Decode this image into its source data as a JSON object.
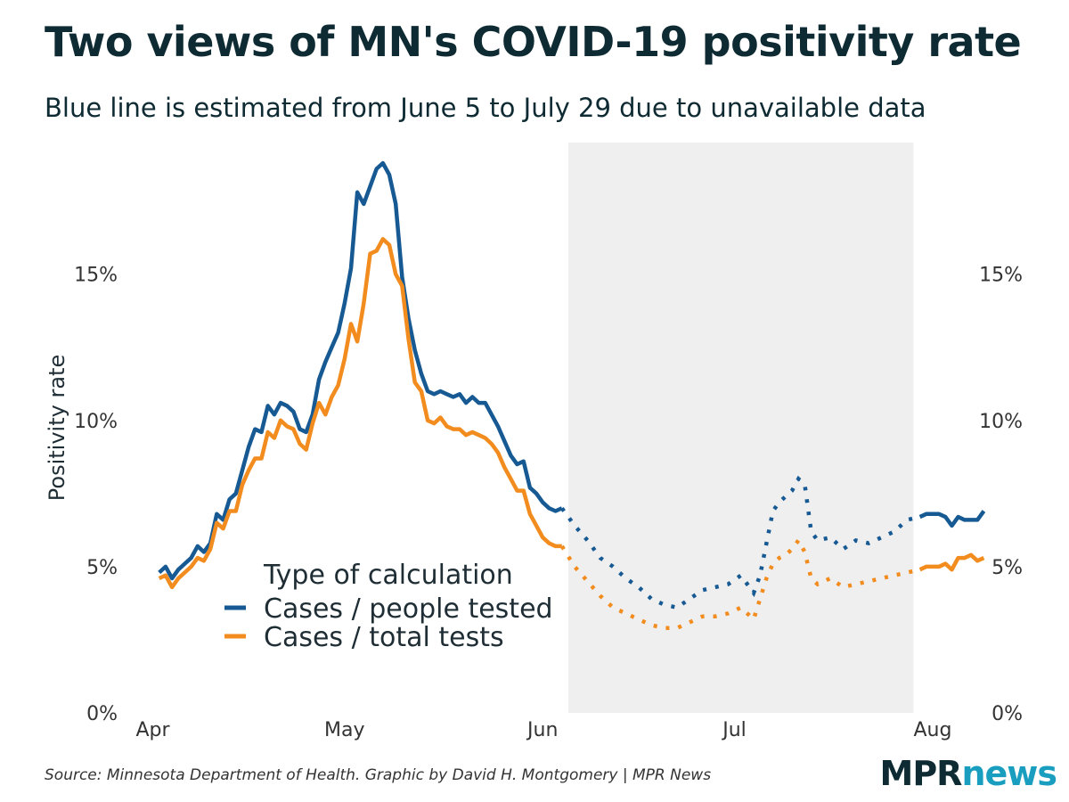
{
  "header": {
    "title": "Two views of MN's COVID-19 positivity rate",
    "subtitle": "Blue line is estimated from June 5 to July 29 due to unavailable data"
  },
  "footer": {
    "source": "Source: Minnesota Department of Health. Graphic by David H. Montgomery | MPR News",
    "logo_mpr": "MPR",
    "logo_news": "news"
  },
  "colors": {
    "people": "#175a93",
    "tests": "#f28c1e",
    "shade": "#efefef",
    "text": "#1f2d35"
  },
  "chart_data": {
    "type": "line",
    "title": "Two views of MN's COVID-19 positivity rate",
    "subtitle": "Blue line is estimated from June 5 to July 29 due to unavailable data",
    "ylabel": "Positivity rate",
    "xlabel": "",
    "ylim": [
      0,
      19.5
    ],
    "xlim": [
      "2020-03-29",
      "2020-08-07"
    ],
    "y_ticks": [
      0,
      5,
      10,
      15
    ],
    "y_tick_labels": [
      "0%",
      "5%",
      "10%",
      "15%"
    ],
    "y_axis_both_sides": true,
    "x_ticks": [
      "2020-04-01",
      "2020-05-01",
      "2020-06-01",
      "2020-07-01",
      "2020-08-01"
    ],
    "x_tick_labels": [
      "Apr",
      "May",
      "Jun",
      "Jul",
      "Aug"
    ],
    "shaded_range": [
      "2020-06-05",
      "2020-07-29"
    ],
    "grid": false,
    "legend": {
      "title": "Type of calculation",
      "placement": "bottom-left",
      "entries": [
        "Cases / people tested",
        "Cases / total tests"
      ]
    },
    "series": [
      {
        "name": "Cases / people tested",
        "color_key": "people",
        "solid": [
          [
            "2020-04-02",
            4.8
          ],
          [
            "2020-04-03",
            5.0
          ],
          [
            "2020-04-04",
            4.6
          ],
          [
            "2020-04-05",
            4.9
          ],
          [
            "2020-04-06",
            5.1
          ],
          [
            "2020-04-07",
            5.3
          ],
          [
            "2020-04-08",
            5.7
          ],
          [
            "2020-04-09",
            5.5
          ],
          [
            "2020-04-10",
            5.8
          ],
          [
            "2020-04-11",
            6.8
          ],
          [
            "2020-04-12",
            6.6
          ],
          [
            "2020-04-13",
            7.3
          ],
          [
            "2020-04-14",
            7.5
          ],
          [
            "2020-04-15",
            8.3
          ],
          [
            "2020-04-16",
            9.1
          ],
          [
            "2020-04-17",
            9.7
          ],
          [
            "2020-04-18",
            9.6
          ],
          [
            "2020-04-19",
            10.5
          ],
          [
            "2020-04-20",
            10.2
          ],
          [
            "2020-04-21",
            10.6
          ],
          [
            "2020-04-22",
            10.5
          ],
          [
            "2020-04-23",
            10.3
          ],
          [
            "2020-04-24",
            9.7
          ],
          [
            "2020-04-25",
            9.6
          ],
          [
            "2020-04-26",
            10.2
          ],
          [
            "2020-04-27",
            11.4
          ],
          [
            "2020-04-28",
            12.0
          ],
          [
            "2020-04-29",
            12.5
          ],
          [
            "2020-04-30",
            13.0
          ],
          [
            "2020-05-01",
            14.0
          ],
          [
            "2020-05-02",
            15.2
          ],
          [
            "2020-05-03",
            17.8
          ],
          [
            "2020-05-04",
            17.4
          ],
          [
            "2020-05-05",
            18.0
          ],
          [
            "2020-05-06",
            18.6
          ],
          [
            "2020-05-07",
            18.8
          ],
          [
            "2020-05-08",
            18.4
          ],
          [
            "2020-05-09",
            17.4
          ],
          [
            "2020-05-10",
            14.9
          ],
          [
            "2020-05-11",
            13.5
          ],
          [
            "2020-05-12",
            12.4
          ],
          [
            "2020-05-13",
            11.6
          ],
          [
            "2020-05-14",
            11.0
          ],
          [
            "2020-05-15",
            10.9
          ],
          [
            "2020-05-16",
            11.0
          ],
          [
            "2020-05-17",
            10.9
          ],
          [
            "2020-05-18",
            10.8
          ],
          [
            "2020-05-19",
            10.9
          ],
          [
            "2020-05-20",
            10.6
          ],
          [
            "2020-05-21",
            10.8
          ],
          [
            "2020-05-22",
            10.6
          ],
          [
            "2020-05-23",
            10.6
          ],
          [
            "2020-05-24",
            10.2
          ],
          [
            "2020-05-25",
            9.8
          ],
          [
            "2020-05-26",
            9.3
          ],
          [
            "2020-05-27",
            8.8
          ],
          [
            "2020-05-28",
            8.5
          ],
          [
            "2020-05-29",
            8.6
          ],
          [
            "2020-05-30",
            7.7
          ],
          [
            "2020-05-31",
            7.5
          ],
          [
            "2020-06-01",
            7.2
          ],
          [
            "2020-06-02",
            7.0
          ],
          [
            "2020-06-03",
            6.9
          ],
          [
            "2020-06-04",
            7.0
          ]
        ],
        "estimated": [
          [
            "2020-06-04",
            7.0
          ],
          [
            "2020-06-06",
            6.4
          ],
          [
            "2020-06-08",
            5.9
          ],
          [
            "2020-06-10",
            5.3
          ],
          [
            "2020-06-12",
            5.0
          ],
          [
            "2020-06-14",
            4.6
          ],
          [
            "2020-06-16",
            4.3
          ],
          [
            "2020-06-18",
            3.9
          ],
          [
            "2020-06-20",
            3.7
          ],
          [
            "2020-06-22",
            3.6
          ],
          [
            "2020-06-24",
            3.9
          ],
          [
            "2020-06-26",
            4.2
          ],
          [
            "2020-06-28",
            4.3
          ],
          [
            "2020-06-30",
            4.4
          ],
          [
            "2020-07-02",
            4.7
          ],
          [
            "2020-07-04",
            4.1
          ],
          [
            "2020-07-05",
            4.7
          ],
          [
            "2020-07-06",
            5.8
          ],
          [
            "2020-07-07",
            6.9
          ],
          [
            "2020-07-08",
            7.2
          ],
          [
            "2020-07-09",
            7.4
          ],
          [
            "2020-07-10",
            7.6
          ],
          [
            "2020-07-11",
            8.0
          ],
          [
            "2020-07-12",
            7.8
          ],
          [
            "2020-07-13",
            6.2
          ],
          [
            "2020-07-14",
            5.9
          ],
          [
            "2020-07-16",
            6.0
          ],
          [
            "2020-07-18",
            5.6
          ],
          [
            "2020-07-20",
            5.9
          ],
          [
            "2020-07-22",
            5.8
          ],
          [
            "2020-07-24",
            6.0
          ],
          [
            "2020-07-26",
            6.2
          ],
          [
            "2020-07-28",
            6.6
          ],
          [
            "2020-07-30",
            6.7
          ]
        ],
        "after": [
          [
            "2020-07-30",
            6.7
          ],
          [
            "2020-07-31",
            6.8
          ],
          [
            "2020-08-01",
            6.8
          ],
          [
            "2020-08-02",
            6.8
          ],
          [
            "2020-08-03",
            6.7
          ],
          [
            "2020-08-04",
            6.4
          ],
          [
            "2020-08-05",
            6.7
          ],
          [
            "2020-08-06",
            6.6
          ],
          [
            "2020-08-07",
            6.6
          ],
          [
            "2020-08-08",
            6.6
          ],
          [
            "2020-08-09",
            6.9
          ]
        ]
      },
      {
        "name": "Cases / total tests",
        "color_key": "tests",
        "solid": [
          [
            "2020-04-02",
            4.6
          ],
          [
            "2020-04-03",
            4.7
          ],
          [
            "2020-04-04",
            4.3
          ],
          [
            "2020-04-05",
            4.6
          ],
          [
            "2020-04-06",
            4.8
          ],
          [
            "2020-04-07",
            5.0
          ],
          [
            "2020-04-08",
            5.3
          ],
          [
            "2020-04-09",
            5.2
          ],
          [
            "2020-04-10",
            5.6
          ],
          [
            "2020-04-11",
            6.5
          ],
          [
            "2020-04-12",
            6.3
          ],
          [
            "2020-04-13",
            6.9
          ],
          [
            "2020-04-14",
            6.9
          ],
          [
            "2020-04-15",
            7.8
          ],
          [
            "2020-04-16",
            8.3
          ],
          [
            "2020-04-17",
            8.7
          ],
          [
            "2020-04-18",
            8.7
          ],
          [
            "2020-04-19",
            9.6
          ],
          [
            "2020-04-20",
            9.4
          ],
          [
            "2020-04-21",
            10.0
          ],
          [
            "2020-04-22",
            9.8
          ],
          [
            "2020-04-23",
            9.7
          ],
          [
            "2020-04-24",
            9.2
          ],
          [
            "2020-04-25",
            9.0
          ],
          [
            "2020-04-26",
            9.9
          ],
          [
            "2020-04-27",
            10.6
          ],
          [
            "2020-04-28",
            10.2
          ],
          [
            "2020-04-29",
            10.8
          ],
          [
            "2020-04-30",
            11.2
          ],
          [
            "2020-05-01",
            12.1
          ],
          [
            "2020-05-02",
            13.3
          ],
          [
            "2020-05-03",
            12.7
          ],
          [
            "2020-05-04",
            14.0
          ],
          [
            "2020-05-05",
            15.7
          ],
          [
            "2020-05-06",
            15.8
          ],
          [
            "2020-05-07",
            16.2
          ],
          [
            "2020-05-08",
            16.0
          ],
          [
            "2020-05-09",
            15.0
          ],
          [
            "2020-05-10",
            14.6
          ],
          [
            "2020-05-11",
            12.8
          ],
          [
            "2020-05-12",
            11.3
          ],
          [
            "2020-05-13",
            11.0
          ],
          [
            "2020-05-14",
            10.0
          ],
          [
            "2020-05-15",
            9.9
          ],
          [
            "2020-05-16",
            10.1
          ],
          [
            "2020-05-17",
            9.8
          ],
          [
            "2020-05-18",
            9.7
          ],
          [
            "2020-05-19",
            9.7
          ],
          [
            "2020-05-20",
            9.5
          ],
          [
            "2020-05-21",
            9.6
          ],
          [
            "2020-05-22",
            9.5
          ],
          [
            "2020-05-23",
            9.4
          ],
          [
            "2020-05-24",
            9.2
          ],
          [
            "2020-05-25",
            8.9
          ],
          [
            "2020-05-26",
            8.4
          ],
          [
            "2020-05-27",
            8.0
          ],
          [
            "2020-05-28",
            7.6
          ],
          [
            "2020-05-29",
            7.6
          ],
          [
            "2020-05-30",
            6.8
          ],
          [
            "2020-05-31",
            6.4
          ],
          [
            "2020-06-01",
            6.0
          ],
          [
            "2020-06-02",
            5.8
          ],
          [
            "2020-06-03",
            5.7
          ],
          [
            "2020-06-04",
            5.7
          ]
        ],
        "estimated": [
          [
            "2020-06-04",
            5.7
          ],
          [
            "2020-06-06",
            5.0
          ],
          [
            "2020-06-08",
            4.5
          ],
          [
            "2020-06-10",
            4.0
          ],
          [
            "2020-06-12",
            3.6
          ],
          [
            "2020-06-14",
            3.4
          ],
          [
            "2020-06-16",
            3.2
          ],
          [
            "2020-06-18",
            3.0
          ],
          [
            "2020-06-20",
            2.9
          ],
          [
            "2020-06-22",
            2.9
          ],
          [
            "2020-06-24",
            3.1
          ],
          [
            "2020-06-26",
            3.3
          ],
          [
            "2020-06-28",
            3.3
          ],
          [
            "2020-06-30",
            3.4
          ],
          [
            "2020-07-02",
            3.6
          ],
          [
            "2020-07-04",
            3.2
          ],
          [
            "2020-07-05",
            3.9
          ],
          [
            "2020-07-06",
            4.6
          ],
          [
            "2020-07-07",
            5.1
          ],
          [
            "2020-07-08",
            5.3
          ],
          [
            "2020-07-09",
            5.4
          ],
          [
            "2020-07-10",
            5.6
          ],
          [
            "2020-07-11",
            5.9
          ],
          [
            "2020-07-12",
            5.5
          ],
          [
            "2020-07-13",
            4.6
          ],
          [
            "2020-07-14",
            4.4
          ],
          [
            "2020-07-16",
            4.6
          ],
          [
            "2020-07-18",
            4.3
          ],
          [
            "2020-07-20",
            4.4
          ],
          [
            "2020-07-22",
            4.5
          ],
          [
            "2020-07-24",
            4.6
          ],
          [
            "2020-07-26",
            4.7
          ],
          [
            "2020-07-28",
            4.8
          ],
          [
            "2020-07-30",
            4.9
          ]
        ],
        "after": [
          [
            "2020-07-30",
            4.9
          ],
          [
            "2020-07-31",
            5.0
          ],
          [
            "2020-08-01",
            5.0
          ],
          [
            "2020-08-02",
            5.0
          ],
          [
            "2020-08-03",
            5.1
          ],
          [
            "2020-08-04",
            4.9
          ],
          [
            "2020-08-05",
            5.3
          ],
          [
            "2020-08-06",
            5.3
          ],
          [
            "2020-08-07",
            5.4
          ],
          [
            "2020-08-08",
            5.2
          ],
          [
            "2020-08-09",
            5.3
          ]
        ]
      }
    ]
  }
}
